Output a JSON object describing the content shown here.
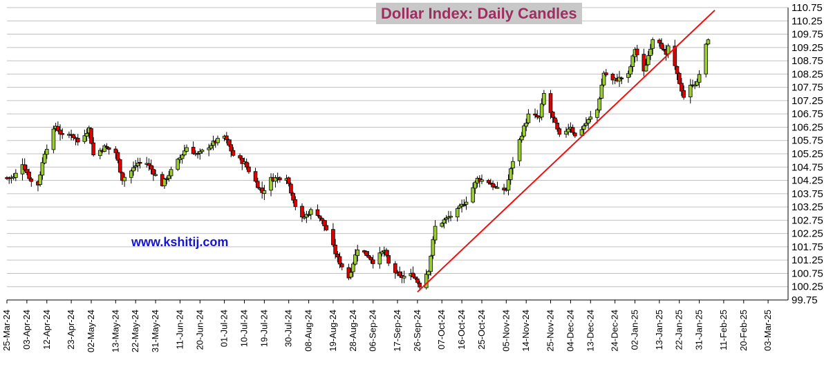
{
  "chart_data": {
    "type": "candlestick",
    "title": "Dollar Index: Daily Candles",
    "watermark": "www.kshitij.com",
    "ylim": [
      99.75,
      110.75
    ],
    "yticks": [
      "110.75",
      "110.25",
      "109.75",
      "109.25",
      "108.75",
      "108.25",
      "107.75",
      "107.25",
      "106.75",
      "106.25",
      "105.75",
      "105.25",
      "104.75",
      "104.25",
      "103.75",
      "103.25",
      "102.75",
      "102.25",
      "101.75",
      "101.25",
      "100.75",
      "100.25",
      "99.75"
    ],
    "xlim": [
      "2024-03-25",
      "2025-03-12"
    ],
    "xticks": [
      {
        "date": "2024-03-25",
        "label": "25-Mar-24"
      },
      {
        "date": "2024-04-03",
        "label": "03-Apr-24"
      },
      {
        "date": "2024-04-12",
        "label": "12-Apr-24"
      },
      {
        "date": "2024-04-23",
        "label": "23-Apr-24"
      },
      {
        "date": "2024-05-02",
        "label": "02-May-24"
      },
      {
        "date": "2024-05-13",
        "label": "13-May-24"
      },
      {
        "date": "2024-05-22",
        "label": "22-May-24"
      },
      {
        "date": "2024-05-31",
        "label": "31-May-24"
      },
      {
        "date": "2024-06-11",
        "label": "11-Jun-24"
      },
      {
        "date": "2024-06-20",
        "label": "20-Jun-24"
      },
      {
        "date": "2024-07-01",
        "label": "01-Jul-24"
      },
      {
        "date": "2024-07-10",
        "label": "10-Jul-24"
      },
      {
        "date": "2024-07-19",
        "label": "19-Jul-24"
      },
      {
        "date": "2024-07-30",
        "label": "30-Jul-24"
      },
      {
        "date": "2024-08-08",
        "label": "08-Aug-24"
      },
      {
        "date": "2024-08-19",
        "label": "19-Aug-24"
      },
      {
        "date": "2024-08-28",
        "label": "28-Aug-24"
      },
      {
        "date": "2024-09-06",
        "label": "06-Sep-24"
      },
      {
        "date": "2024-09-17",
        "label": "17-Sep-24"
      },
      {
        "date": "2024-09-26",
        "label": "26-Sep-24"
      },
      {
        "date": "2024-10-07",
        "label": "07-Oct-24"
      },
      {
        "date": "2024-10-16",
        "label": "16-Oct-24"
      },
      {
        "date": "2024-10-25",
        "label": "25-Oct-24"
      },
      {
        "date": "2024-11-05",
        "label": "05-Nov-24"
      },
      {
        "date": "2024-11-14",
        "label": "14-Nov-24"
      },
      {
        "date": "2024-11-25",
        "label": "25-Nov-24"
      },
      {
        "date": "2024-12-04",
        "label": "04-Dec-24"
      },
      {
        "date": "2024-12-13",
        "label": "13-Dec-24"
      },
      {
        "date": "2024-12-24",
        "label": "24-Dec-24"
      },
      {
        "date": "2025-01-02",
        "label": "02-Jan-25"
      },
      {
        "date": "2025-01-13",
        "label": "13-Jan-25"
      },
      {
        "date": "2025-01-22",
        "label": "22-Jan-25"
      },
      {
        "date": "2025-01-31",
        "label": "31-Jan-25"
      },
      {
        "date": "2025-02-11",
        "label": "11-Feb-25"
      },
      {
        "date": "2025-02-20",
        "label": "20-Feb-25"
      },
      {
        "date": "2025-03-03",
        "label": "03-Mar-25"
      }
    ],
    "grid": true,
    "colors": {
      "up": "#9acd32",
      "down": "#e00000",
      "trendline": "#ee1111",
      "grid": "#c0c0c0",
      "title": "#9b2f5f",
      "title_bg": "#c8c8c8",
      "watermark": "#1414d2"
    },
    "trendline": [
      {
        "date": "2024-09-26",
        "value": 100.05
      },
      {
        "date": "2025-02-07",
        "value": 110.65
      }
    ],
    "waypoints": [
      {
        "date": "2024-03-25",
        "value": 104.35
      },
      {
        "date": "2024-03-28",
        "value": 104.35
      },
      {
        "date": "2024-04-01",
        "value": 104.9
      },
      {
        "date": "2024-04-05",
        "value": 104.2
      },
      {
        "date": "2024-04-08",
        "value": 104.1
      },
      {
        "date": "2024-04-11",
        "value": 105.3
      },
      {
        "date": "2024-04-16",
        "value": 106.3
      },
      {
        "date": "2024-04-19",
        "value": 105.9
      },
      {
        "date": "2024-04-23",
        "value": 106.0
      },
      {
        "date": "2024-04-26",
        "value": 105.7
      },
      {
        "date": "2024-05-01",
        "value": 106.2
      },
      {
        "date": "2024-05-03",
        "value": 105.2
      },
      {
        "date": "2024-05-08",
        "value": 105.5
      },
      {
        "date": "2024-05-13",
        "value": 105.3
      },
      {
        "date": "2024-05-16",
        "value": 104.3
      },
      {
        "date": "2024-05-20",
        "value": 104.6
      },
      {
        "date": "2024-05-23",
        "value": 104.9
      },
      {
        "date": "2024-05-27",
        "value": 104.9
      },
      {
        "date": "2024-06-03",
        "value": 104.1
      },
      {
        "date": "2024-06-07",
        "value": 104.6
      },
      {
        "date": "2024-06-11",
        "value": 105.1
      },
      {
        "date": "2024-06-14",
        "value": 105.5
      },
      {
        "date": "2024-06-19",
        "value": 105.2
      },
      {
        "date": "2024-06-25",
        "value": 105.6
      },
      {
        "date": "2024-07-01",
        "value": 105.9
      },
      {
        "date": "2024-07-05",
        "value": 105.2
      },
      {
        "date": "2024-07-10",
        "value": 104.9
      },
      {
        "date": "2024-07-15",
        "value": 104.2
      },
      {
        "date": "2024-07-18",
        "value": 103.8
      },
      {
        "date": "2024-07-22",
        "value": 104.3
      },
      {
        "date": "2024-07-29",
        "value": 104.4
      },
      {
        "date": "2024-08-02",
        "value": 103.3
      },
      {
        "date": "2024-08-05",
        "value": 102.8
      },
      {
        "date": "2024-08-09",
        "value": 103.1
      },
      {
        "date": "2024-08-12",
        "value": 103.0
      },
      {
        "date": "2024-08-16",
        "value": 102.4
      },
      {
        "date": "2024-08-21",
        "value": 101.3
      },
      {
        "date": "2024-08-26",
        "value": 100.6
      },
      {
        "date": "2024-08-30",
        "value": 101.7
      },
      {
        "date": "2024-09-04",
        "value": 101.4
      },
      {
        "date": "2024-09-06",
        "value": 101.2
      },
      {
        "date": "2024-09-11",
        "value": 101.6
      },
      {
        "date": "2024-09-13",
        "value": 101.1
      },
      {
        "date": "2024-09-18",
        "value": 100.6
      },
      {
        "date": "2024-09-24",
        "value": 100.7
      },
      {
        "date": "2024-09-27",
        "value": 100.3
      },
      {
        "date": "2024-10-01",
        "value": 100.9
      },
      {
        "date": "2024-10-04",
        "value": 102.5
      },
      {
        "date": "2024-10-09",
        "value": 102.8
      },
      {
        "date": "2024-10-14",
        "value": 103.1
      },
      {
        "date": "2024-10-18",
        "value": 103.5
      },
      {
        "date": "2024-10-23",
        "value": 104.3
      },
      {
        "date": "2024-10-28",
        "value": 104.2
      },
      {
        "date": "2024-11-01",
        "value": 103.9
      },
      {
        "date": "2024-11-05",
        "value": 103.9
      },
      {
        "date": "2024-11-08",
        "value": 105.0
      },
      {
        "date": "2024-11-12",
        "value": 106.0
      },
      {
        "date": "2024-11-15",
        "value": 106.7
      },
      {
        "date": "2024-11-20",
        "value": 106.6
      },
      {
        "date": "2024-11-22",
        "value": 107.5
      },
      {
        "date": "2024-11-25",
        "value": 106.8
      },
      {
        "date": "2024-11-29",
        "value": 105.9
      },
      {
        "date": "2024-12-04",
        "value": 106.3
      },
      {
        "date": "2024-12-06",
        "value": 105.9
      },
      {
        "date": "2024-12-11",
        "value": 106.4
      },
      {
        "date": "2024-12-16",
        "value": 106.9
      },
      {
        "date": "2024-12-19",
        "value": 108.3
      },
      {
        "date": "2024-12-23",
        "value": 108.0
      },
      {
        "date": "2024-12-30",
        "value": 108.2
      },
      {
        "date": "2025-01-02",
        "value": 109.2
      },
      {
        "date": "2025-01-06",
        "value": 108.3
      },
      {
        "date": "2025-01-10",
        "value": 109.6
      },
      {
        "date": "2025-01-13",
        "value": 109.5
      },
      {
        "date": "2025-01-16",
        "value": 108.9
      },
      {
        "date": "2025-01-17",
        "value": 109.3
      },
      {
        "date": "2025-01-21",
        "value": 108.2
      },
      {
        "date": "2025-01-24",
        "value": 107.4
      },
      {
        "date": "2025-01-28",
        "value": 107.9
      },
      {
        "date": "2025-01-30",
        "value": 107.9
      },
      {
        "date": "2025-02-03",
        "value": 109.3
      },
      {
        "date": "2025-02-04",
        "value": 109.6
      }
    ]
  }
}
